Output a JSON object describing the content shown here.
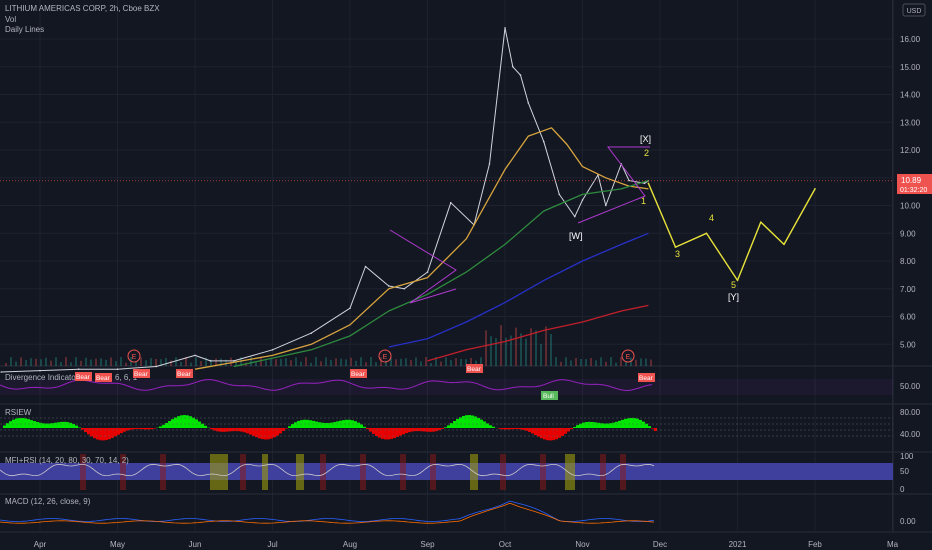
{
  "header": {
    "symbol_line": "LITHIUM AMERICAS CORP, 2h, Cboe BZX",
    "vol_label": "Vol",
    "daily_lines_label": "Daily Lines",
    "currency": "USD"
  },
  "price": {
    "last": "10.89",
    "countdown": "01:32:20"
  },
  "panes": {
    "divergence": {
      "title": "Divergence Indicator",
      "title_suffix": "6, 6, 1",
      "ticks": [
        "50.00"
      ]
    },
    "rsiew": {
      "title": "RSIEW",
      "ticks": [
        "80.00",
        "40.00"
      ]
    },
    "mfirsi": {
      "title": "MFI+RSI (14, 20, 80, 30, 70, 14, 2)",
      "ticks": [
        "100",
        "50",
        "0"
      ]
    },
    "macd": {
      "title": "MACD (12, 26, close, 9)",
      "ticks": [
        "0.00"
      ]
    }
  },
  "earnings_marker": "E",
  "signals": {
    "bear": "Bear",
    "bull": "Bull"
  },
  "wave_labels": {
    "X": "[X]",
    "W": "[W]",
    "Y": "[Y]",
    "one": "1",
    "two": "2",
    "three": "3",
    "four": "4",
    "five": "5"
  },
  "chart_data": {
    "type": "line",
    "title": "LITHIUM AMERICAS CORP, 2h, Cboe BZX",
    "ylabel": "USD",
    "ylim": [
      4.0,
      17.0
    ],
    "y_ticks": [
      "16.00",
      "15.00",
      "14.00",
      "13.00",
      "12.00",
      "11.00",
      "10.00",
      "9.00",
      "8.00",
      "7.00",
      "6.00",
      "5.00"
    ],
    "x_ticks": [
      "Apr",
      "May",
      "Jun",
      "Jul",
      "Aug",
      "Sep",
      "Oct",
      "Nov",
      "Dec",
      "2021",
      "Feb",
      "Ma"
    ],
    "x_tick_positions_month": [
      4,
      5,
      6,
      7,
      8,
      9,
      10,
      11,
      12,
      13,
      14,
      15
    ],
    "series": [
      {
        "name": "",
        "color": "#d1d4dc",
        "x": [
          3.5,
          4.0,
          4.5,
          5.0,
          5.5,
          6.0,
          6.2,
          6.5,
          7.0,
          7.5,
          8.0,
          8.2,
          8.5,
          8.7,
          9.0,
          9.3,
          9.6,
          9.8,
          10.0,
          10.1,
          10.2,
          10.3,
          10.5,
          10.7,
          10.9,
          11.0,
          11.2,
          11.3,
          11.5,
          11.6,
          11.8,
          11.85
        ],
        "values": [
          4.0,
          4.05,
          4.1,
          4.1,
          4.2,
          4.6,
          4.4,
          4.4,
          4.8,
          5.4,
          6.3,
          7.8,
          7.1,
          7.0,
          7.6,
          10.1,
          9.3,
          11.5,
          16.4,
          15.0,
          14.7,
          13.7,
          12.3,
          10.4,
          9.6,
          10.2,
          11.1,
          10.0,
          11.5,
          10.9,
          10.8,
          10.89
        ]
      },
      {
        "name": "",
        "color": "#d8a43e",
        "x": [
          6.0,
          7.0,
          7.5,
          8.0,
          8.5,
          9.0,
          9.5,
          10.0,
          10.3,
          10.6,
          10.8,
          11.0,
          11.3,
          11.6,
          11.85
        ],
        "values": [
          4.1,
          4.6,
          5.0,
          5.7,
          7.0,
          7.4,
          8.8,
          11.3,
          12.5,
          12.8,
          12.2,
          11.4,
          11.0,
          10.7,
          10.6
        ]
      },
      {
        "name": "",
        "color": "#2e8b3e",
        "x": [
          6.5,
          7.5,
          8.0,
          8.5,
          9.0,
          9.5,
          10.0,
          10.5,
          11.0,
          11.5,
          11.85
        ],
        "values": [
          4.2,
          4.8,
          5.3,
          6.2,
          6.8,
          7.6,
          8.6,
          9.8,
          10.4,
          10.6,
          10.9
        ]
      },
      {
        "name": "",
        "color": "#2730c8",
        "x": [
          8.5,
          9.0,
          9.5,
          10.0,
          10.5,
          11.0,
          11.5,
          11.85
        ],
        "values": [
          4.9,
          5.2,
          5.8,
          6.5,
          7.3,
          8.0,
          8.6,
          9.0
        ]
      },
      {
        "name": "",
        "color": "#c21f2a",
        "x": [
          9.0,
          9.5,
          10.0,
          10.5,
          11.0,
          11.5,
          11.85
        ],
        "values": [
          4.4,
          4.8,
          5.1,
          5.5,
          5.8,
          6.2,
          6.4
        ]
      },
      {
        "name": "",
        "color": "#e8e23a",
        "x": [
          11.85,
          12.2,
          12.6,
          13.0,
          13.3,
          13.6,
          14.0
        ],
        "values": [
          10.8,
          8.5,
          9.0,
          7.3,
          9.4,
          8.6,
          10.6
        ]
      }
    ]
  },
  "colors": {
    "background": "#131722",
    "grid": "#1e2230",
    "axis_text": "#b2b5be",
    "price_line": "#d1d4dc",
    "last_price_bg": "#ef5350",
    "bear_bg": "#ef5350",
    "bull_bg": "#59b95d",
    "div_line": "#a020c8",
    "rsiew_up": "#00e600",
    "rsiew_down": "#e60000",
    "mfi_band": "#3f3f9e",
    "wave": "#e8e23a",
    "pattern": "#b03ad0"
  }
}
